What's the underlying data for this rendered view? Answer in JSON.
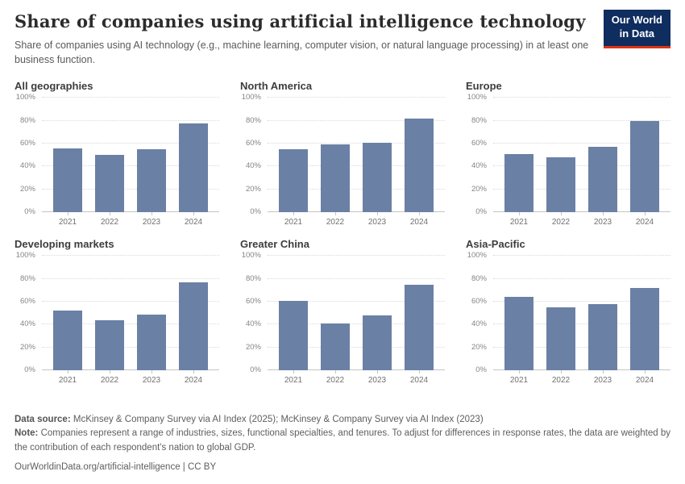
{
  "header": {
    "title": "Share of companies using artificial intelligence technology",
    "subtitle": "Share of companies using AI technology (e.g., machine learning, computer vision, or natural language processing) in at least one business function.",
    "logo": {
      "line1": "Our World",
      "line2": "in Data"
    }
  },
  "colors": {
    "bar": "#6b80a5",
    "logo_background": "#0f2d5f",
    "logo_accent": "#dc3318"
  },
  "chart_data": {
    "type": "bar",
    "categories": [
      "2021",
      "2022",
      "2023",
      "2024"
    ],
    "ylim": [
      0,
      100
    ],
    "yticks": [
      0,
      20,
      40,
      60,
      80,
      100
    ],
    "ytick_labels": [
      "0%",
      "20%",
      "40%",
      "60%",
      "80%",
      "100%"
    ],
    "grid": "dotted-horizontal",
    "legend": "none",
    "panels": [
      {
        "title": "All geographies",
        "values": [
          56,
          50,
          55,
          78
        ]
      },
      {
        "title": "North America",
        "values": [
          55,
          59,
          61,
          82
        ]
      },
      {
        "title": "Europe",
        "values": [
          51,
          48,
          57,
          80
        ]
      },
      {
        "title": "Developing markets",
        "values": [
          52,
          44,
          49,
          77
        ]
      },
      {
        "title": "Greater China",
        "values": [
          61,
          41,
          48,
          75
        ]
      },
      {
        "title": "Asia-Pacific",
        "values": [
          64,
          55,
          58,
          72
        ]
      }
    ]
  },
  "footer": {
    "datasource_label": "Data source:",
    "datasource_text": " McKinsey & Company Survey via AI Index (2025); McKinsey & Company Survey via AI Index (2023)",
    "note_label": "Note:",
    "note_text": " Companies represent a range of industries, sizes, functional specialties, and tenures. To adjust for differences in response rates, the data are weighted by the contribution of each respondent's nation to global GDP.",
    "citation": "OurWorldinData.org/artificial-intelligence | CC BY"
  }
}
